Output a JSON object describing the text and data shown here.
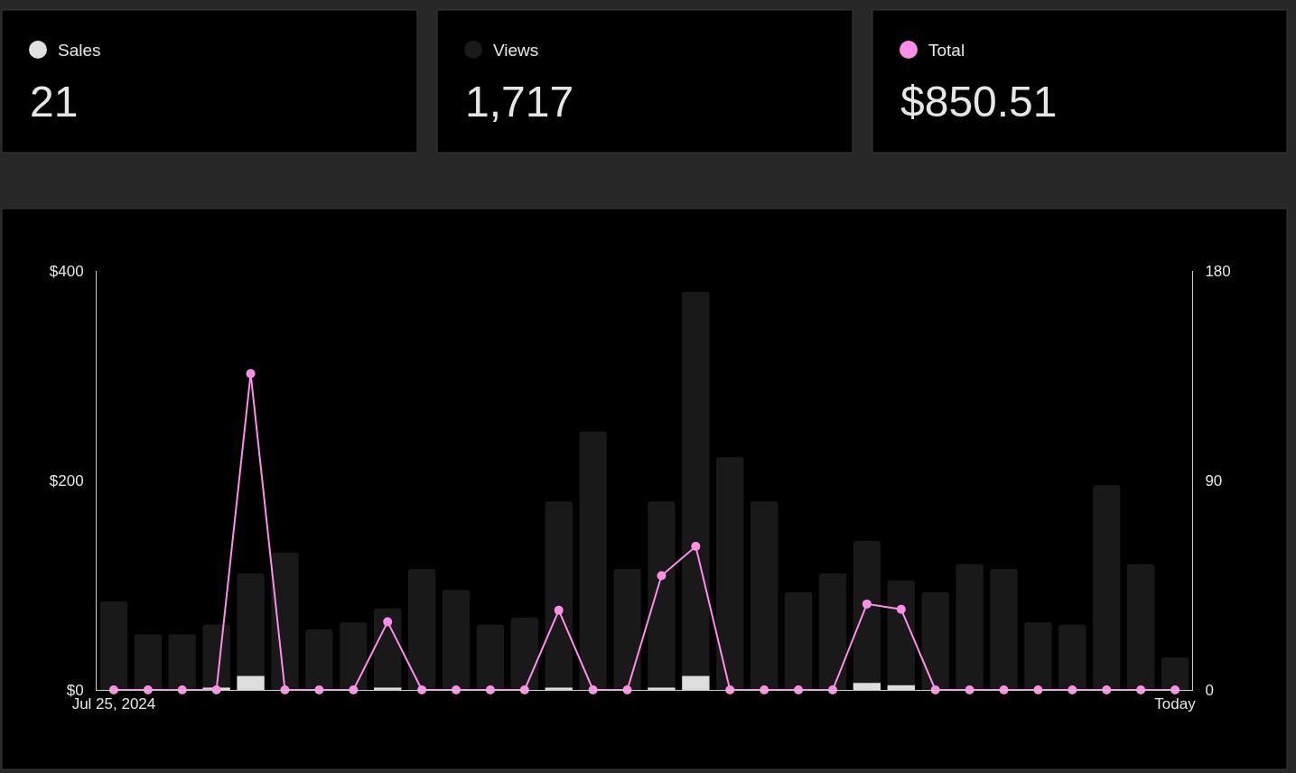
{
  "chart_data": [
    {
      "type": "other",
      "title": "Sales",
      "color": "#e0e0e0",
      "annotations": [
        "21"
      ]
    },
    {
      "type": "other",
      "title": "Views",
      "color": "#1a1a1a",
      "annotations": [
        "1,717"
      ]
    },
    {
      "type": "other",
      "title": "Total",
      "color": "#ff8ee8",
      "annotations": [
        "$850.51"
      ]
    },
    {
      "type": "bar",
      "categories": [
        "Jul 25, 2024",
        null,
        null,
        null,
        null,
        null,
        null,
        null,
        null,
        null,
        null,
        null,
        null,
        null,
        null,
        null,
        null,
        null,
        null,
        null,
        null,
        null,
        null,
        null,
        null,
        null,
        null,
        null,
        null,
        null,
        null,
        "Today"
      ],
      "series": [
        {
          "type": "bar",
          "axis": "y2",
          "color": "#191919",
          "values": [
            38,
            24,
            24,
            28,
            50,
            59,
            26,
            29,
            35,
            52,
            43,
            28,
            31,
            81,
            111,
            52,
            81,
            171,
            100,
            81,
            42,
            50,
            64,
            47,
            42,
            54,
            52,
            29,
            28,
            88,
            54,
            14
          ]
        },
        {
          "type": "bar",
          "axis": "y2",
          "color": "#dddddd",
          "values": [
            0,
            0,
            0,
            1,
            6,
            0,
            0,
            0,
            1,
            0,
            0,
            0,
            0,
            1,
            0,
            0,
            1,
            6,
            0,
            0,
            0,
            0,
            3,
            2,
            0,
            0,
            0,
            0,
            0,
            0,
            0,
            0
          ]
        },
        {
          "type": "line",
          "axis": "y",
          "color": "#ff8ee8",
          "marker": "circle",
          "values": [
            0,
            0,
            0,
            0,
            302,
            0,
            0,
            0,
            65,
            0,
            0,
            0,
            0,
            76,
            0,
            0,
            109,
            137,
            0,
            0,
            0,
            0,
            82,
            77,
            0,
            0,
            0,
            0,
            0,
            0,
            0,
            0
          ]
        }
      ],
      "ylim": [
        0,
        400
      ],
      "yticks": [
        {
          "value": 0,
          "label": "$0"
        },
        {
          "value": 200,
          "label": "$200"
        },
        {
          "value": 400,
          "label": "$400"
        }
      ],
      "y2lim": [
        0,
        180
      ],
      "y2ticks": [
        0,
        90,
        180
      ],
      "grid": false
    }
  ]
}
